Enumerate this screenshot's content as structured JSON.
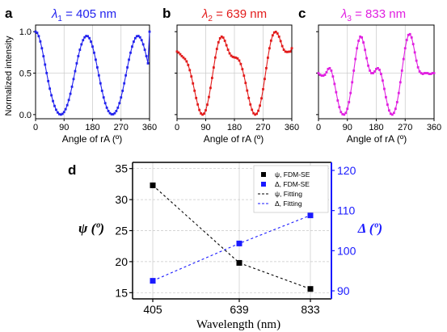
{
  "colors": {
    "blue": "#2222ee",
    "red": "#e21b1b",
    "magenta": "#e020e0",
    "black": "#000000",
    "psi_axis": "#000000",
    "delta_axis": "#1a1aff",
    "grid": "#c8c8c8"
  },
  "panels": [
    {
      "letter": "a",
      "title_lambda": "λ",
      "title_sub": "1",
      "title_rest": " = 405 nm",
      "color": "#2222ee",
      "ylabel": "Normalized intensity",
      "xlabel": "Angle of rA (º)",
      "xticks": [
        "0",
        "90",
        "180",
        "270",
        "360"
      ],
      "yticks": [
        "0.0",
        "0.5",
        "1.0"
      ]
    },
    {
      "letter": "b",
      "title_lambda": "λ",
      "title_sub": "2",
      "title_rest": " = 639 nm",
      "color": "#e21b1b",
      "ylabel": "",
      "xlabel": "Angle of rA (º)",
      "xticks": [
        "0",
        "90",
        "180",
        "270",
        "360"
      ],
      "yticks": []
    },
    {
      "letter": "c",
      "title_lambda": "λ",
      "title_sub": "3",
      "title_rest": " = 833 nm",
      "color": "#e020e0",
      "ylabel": "",
      "xlabel": "Angle of rA (º)",
      "xticks": [
        "0",
        "90",
        "180",
        "270",
        "360"
      ],
      "yticks": []
    }
  ],
  "panel_d": {
    "letter": "d",
    "xlabel": "Wavelength (nm)",
    "ylabel_left": "ψ (º)",
    "ylabel_right": "Δ (º)",
    "xticks": [
      "405",
      "639",
      "833"
    ],
    "yticks_left": [
      "15",
      "20",
      "25",
      "30",
      "35"
    ],
    "yticks_right": [
      "90",
      "100",
      "110",
      "120"
    ],
    "legend": [
      {
        "label": "ψ, FDM-SE",
        "kind": "square",
        "color": "#000000"
      },
      {
        "label": "Δ, FDM-SE",
        "kind": "square",
        "color": "#1a1aff"
      },
      {
        "label": "ψ, Fitting",
        "kind": "dash",
        "color": "#000000"
      },
      {
        "label": "Δ, Fitting",
        "kind": "dash",
        "color": "#1a1aff"
      }
    ]
  },
  "chart_data": [
    {
      "type": "line",
      "panel": "a",
      "xlabel": "Angle of rA (º)",
      "ylabel": "Normalized intensity",
      "xlim": [
        0,
        360
      ],
      "ylim": [
        -0.05,
        1.08
      ],
      "grid": true,
      "series": [
        {
          "x": [
            0,
            5,
            10,
            15,
            20,
            25,
            30,
            35,
            40,
            45,
            50,
            55,
            60,
            65,
            70,
            75,
            80,
            85,
            90,
            95,
            100,
            105,
            110,
            115,
            120,
            125,
            130,
            135,
            140,
            145,
            150,
            155,
            160,
            165,
            170,
            175,
            180,
            185,
            190,
            195,
            200,
            205,
            210,
            215,
            220,
            225,
            230,
            235,
            240,
            245,
            250,
            255,
            260,
            265,
            270,
            275,
            280,
            285,
            290,
            295,
            300,
            305,
            310,
            315,
            320,
            325,
            330,
            335,
            340,
            345,
            350,
            355,
            360
          ],
          "y": [
            1.0,
            0.986,
            0.946,
            0.882,
            0.8,
            0.704,
            0.603,
            0.501,
            0.404,
            0.313,
            0.233,
            0.163,
            0.104,
            0.058,
            0.025,
            0.006,
            0.0,
            0.009,
            0.03,
            0.065,
            0.114,
            0.176,
            0.251,
            0.336,
            0.429,
            0.524,
            0.618,
            0.705,
            0.782,
            0.847,
            0.898,
            0.932,
            0.948,
            0.945,
            0.922,
            0.88,
            0.82,
            0.746,
            0.662,
            0.569,
            0.473,
            0.377,
            0.287,
            0.207,
            0.138,
            0.083,
            0.043,
            0.017,
            0.004,
            0.004,
            0.017,
            0.043,
            0.083,
            0.138,
            0.207,
            0.287,
            0.377,
            0.473,
            0.569,
            0.662,
            0.746,
            0.82,
            0.88,
            0.922,
            0.945,
            0.948,
            0.932,
            0.898,
            0.847,
            0.782,
            0.705,
            0.618,
            1.0
          ]
        }
      ]
    },
    {
      "type": "line",
      "panel": "b",
      "xlabel": "Angle of rA (º)",
      "xlim": [
        0,
        360
      ],
      "ylim": [
        -0.05,
        1.08
      ],
      "grid": true,
      "series": [
        {
          "x": [
            0,
            5,
            10,
            15,
            20,
            25,
            30,
            35,
            40,
            45,
            50,
            55,
            60,
            65,
            70,
            75,
            80,
            85,
            90,
            95,
            100,
            105,
            110,
            115,
            120,
            125,
            130,
            135,
            140,
            145,
            150,
            155,
            160,
            165,
            170,
            175,
            180,
            185,
            190,
            195,
            200,
            205,
            210,
            215,
            220,
            225,
            230,
            235,
            240,
            245,
            250,
            255,
            260,
            265,
            270,
            275,
            280,
            285,
            290,
            295,
            300,
            305,
            310,
            315,
            320,
            325,
            330,
            335,
            340,
            345,
            350,
            355,
            360
          ],
          "y": [
            0.76,
            0.748,
            0.728,
            0.706,
            0.688,
            0.67,
            0.642,
            0.598,
            0.536,
            0.46,
            0.376,
            0.288,
            0.2,
            0.122,
            0.056,
            0.014,
            0.0,
            0.012,
            0.052,
            0.12,
            0.212,
            0.322,
            0.442,
            0.568,
            0.688,
            0.792,
            0.872,
            0.92,
            0.94,
            0.928,
            0.89,
            0.836,
            0.782,
            0.738,
            0.71,
            0.696,
            0.69,
            0.686,
            0.676,
            0.652,
            0.61,
            0.548,
            0.47,
            0.382,
            0.29,
            0.2,
            0.122,
            0.058,
            0.016,
            0.0,
            0.01,
            0.046,
            0.108,
            0.196,
            0.306,
            0.43,
            0.56,
            0.686,
            0.8,
            0.892,
            0.956,
            0.99,
            0.998,
            0.978,
            0.94,
            0.886,
            0.826,
            0.782,
            0.76,
            0.755,
            0.758,
            0.76,
            0.8
          ]
        }
      ]
    },
    {
      "type": "line",
      "panel": "c",
      "xlabel": "Angle of rA (º)",
      "xlim": [
        0,
        360
      ],
      "ylim": [
        -0.05,
        1.08
      ],
      "grid": true,
      "series": [
        {
          "x": [
            0,
            5,
            10,
            15,
            20,
            25,
            30,
            35,
            40,
            45,
            50,
            55,
            60,
            65,
            70,
            75,
            80,
            85,
            90,
            95,
            100,
            105,
            110,
            115,
            120,
            125,
            130,
            135,
            140,
            145,
            150,
            155,
            160,
            165,
            170,
            175,
            180,
            185,
            190,
            195,
            200,
            205,
            210,
            215,
            220,
            225,
            230,
            235,
            240,
            245,
            250,
            255,
            260,
            265,
            270,
            275,
            280,
            285,
            290,
            295,
            300,
            305,
            310,
            315,
            320,
            325,
            330,
            335,
            340,
            345,
            350,
            355,
            360
          ],
          "y": [
            0.5,
            0.48,
            0.47,
            0.47,
            0.48,
            0.51,
            0.55,
            0.56,
            0.53,
            0.46,
            0.37,
            0.27,
            0.17,
            0.09,
            0.03,
            0.005,
            0.0,
            0.02,
            0.07,
            0.15,
            0.26,
            0.39,
            0.53,
            0.67,
            0.8,
            0.89,
            0.94,
            0.93,
            0.87,
            0.78,
            0.68,
            0.59,
            0.53,
            0.5,
            0.5,
            0.52,
            0.55,
            0.56,
            0.54,
            0.49,
            0.41,
            0.31,
            0.21,
            0.12,
            0.05,
            0.01,
            0.0,
            0.02,
            0.07,
            0.15,
            0.26,
            0.39,
            0.53,
            0.67,
            0.8,
            0.9,
            0.96,
            0.97,
            0.93,
            0.85,
            0.75,
            0.65,
            0.57,
            0.52,
            0.5,
            0.49,
            0.5,
            0.5,
            0.5,
            0.49,
            0.49,
            0.5,
            0.5
          ]
        }
      ]
    },
    {
      "type": "scatter",
      "panel": "d",
      "xlabel": "Wavelength (nm)",
      "ylabel": "ψ (º)",
      "ylabel_right": "Δ (º)",
      "categories": [
        "405",
        "639",
        "833"
      ],
      "ylim": [
        14,
        36
      ],
      "ylim_right": [
        88,
        122
      ],
      "grid": true,
      "legend_position": "top-right",
      "series": [
        {
          "name": "ψ, FDM-SE",
          "axis": "left",
          "values": [
            32.3,
            19.8,
            15.6
          ]
        },
        {
          "name": "Δ, FDM-SE",
          "axis": "right",
          "values": [
            92.5,
            101.8,
            108.8
          ]
        },
        {
          "name": "ψ, Fitting",
          "axis": "left",
          "values": [
            32.3,
            19.8,
            15.6
          ]
        },
        {
          "name": "Δ, Fitting",
          "axis": "right",
          "values": [
            92.5,
            101.8,
            108.8
          ]
        }
      ]
    }
  ]
}
